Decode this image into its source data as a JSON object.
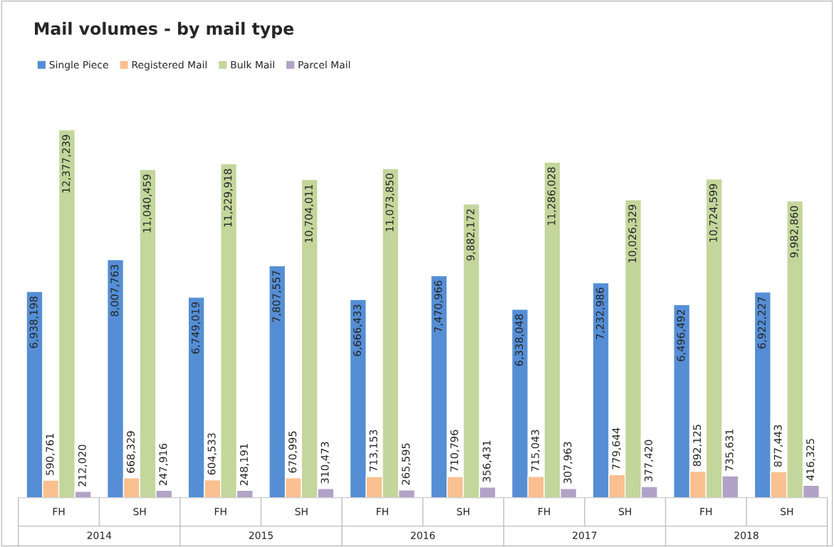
{
  "chart_data": {
    "type": "bar",
    "title": "Mail volumes - by mail type",
    "categories": [
      "FH",
      "SH",
      "FH",
      "SH",
      "FH",
      "SH",
      "FH",
      "SH",
      "FH",
      "SH"
    ],
    "annotations": [
      "2014",
      "2015",
      "2016",
      "2017",
      "2018"
    ],
    "series": [
      {
        "name": "Single Piece",
        "color": "#558ed5",
        "values": [
          6938198,
          8007763,
          6749019,
          7807557,
          6666433,
          7470966,
          6338048,
          7232986,
          6496492,
          6922227
        ],
        "value_labels": [
          "6,938,198",
          "8,007,763",
          "6,749,019",
          "7,807,557",
          "6,666,433",
          "7,470,966",
          "6,338,048",
          "7,232,986",
          "6,496,492",
          "6,922,227"
        ]
      },
      {
        "name": "Registered Mail",
        "color": "#fac090",
        "values": [
          590761,
          668329,
          604533,
          670995,
          713153,
          710796,
          715043,
          779644,
          892125,
          877443
        ],
        "value_labels": [
          "590,761",
          "668,329",
          "604,533",
          "670,995",
          "713,153",
          "710,796",
          "715,043",
          "779,644",
          "892,125",
          "877,443"
        ]
      },
      {
        "name": "Bulk Mail",
        "color": "#c3d69b",
        "values": [
          12377239,
          11040459,
          11229918,
          10704011,
          11073850,
          9882172,
          11286028,
          10026329,
          10724599,
          9982860
        ],
        "value_labels": [
          "12,377,239",
          "11,040,459",
          "11,229,918",
          "10,704,011",
          "11,073,850",
          "9,882,172",
          "11,286,028",
          "10,026,329",
          "10,724,599",
          "9,982,860"
        ]
      },
      {
        "name": "Parcel Mail",
        "color": "#b3a2c7",
        "values": [
          212020,
          247916,
          248191,
          310473,
          265595,
          356431,
          307963,
          377420,
          735631,
          416325
        ],
        "value_labels": [
          "212,020",
          "247,916",
          "248,191",
          "310,473",
          "265,595",
          "356,431",
          "307,963",
          "377,420",
          "735,631",
          "416,325"
        ]
      }
    ],
    "legend": "top left",
    "grid": false
  }
}
